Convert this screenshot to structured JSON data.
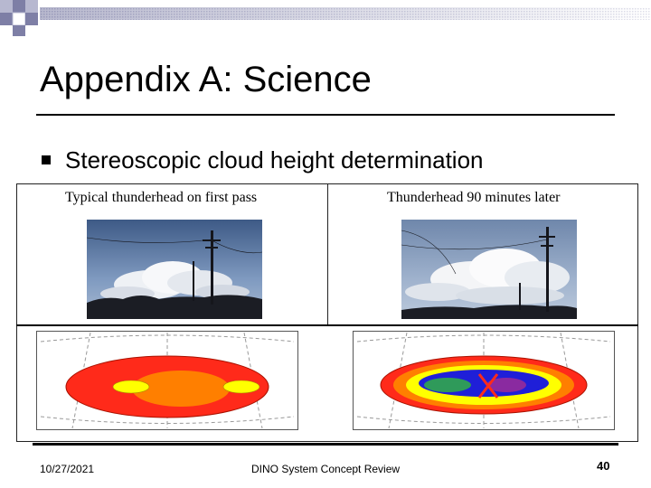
{
  "slide": {
    "title": "Appendix A: Science",
    "bullet": "Stereoscopic cloud height determination"
  },
  "figure": {
    "left_caption": "Typical thunderhead on first pass",
    "right_caption": "Thunderhead 90 minutes later"
  },
  "footer": {
    "date": "10/27/2021",
    "center": "DINO System Concept Review",
    "page_number": "40"
  },
  "colors": {
    "accent_block": "#7e7fa6",
    "map_red": "#ff2a1a",
    "map_orange": "#ff7f00",
    "map_yellow": "#ffff00",
    "map_blue": "#1f1fd8",
    "map_green": "#2f9a5a",
    "map_purple": "#8a2aa0"
  }
}
